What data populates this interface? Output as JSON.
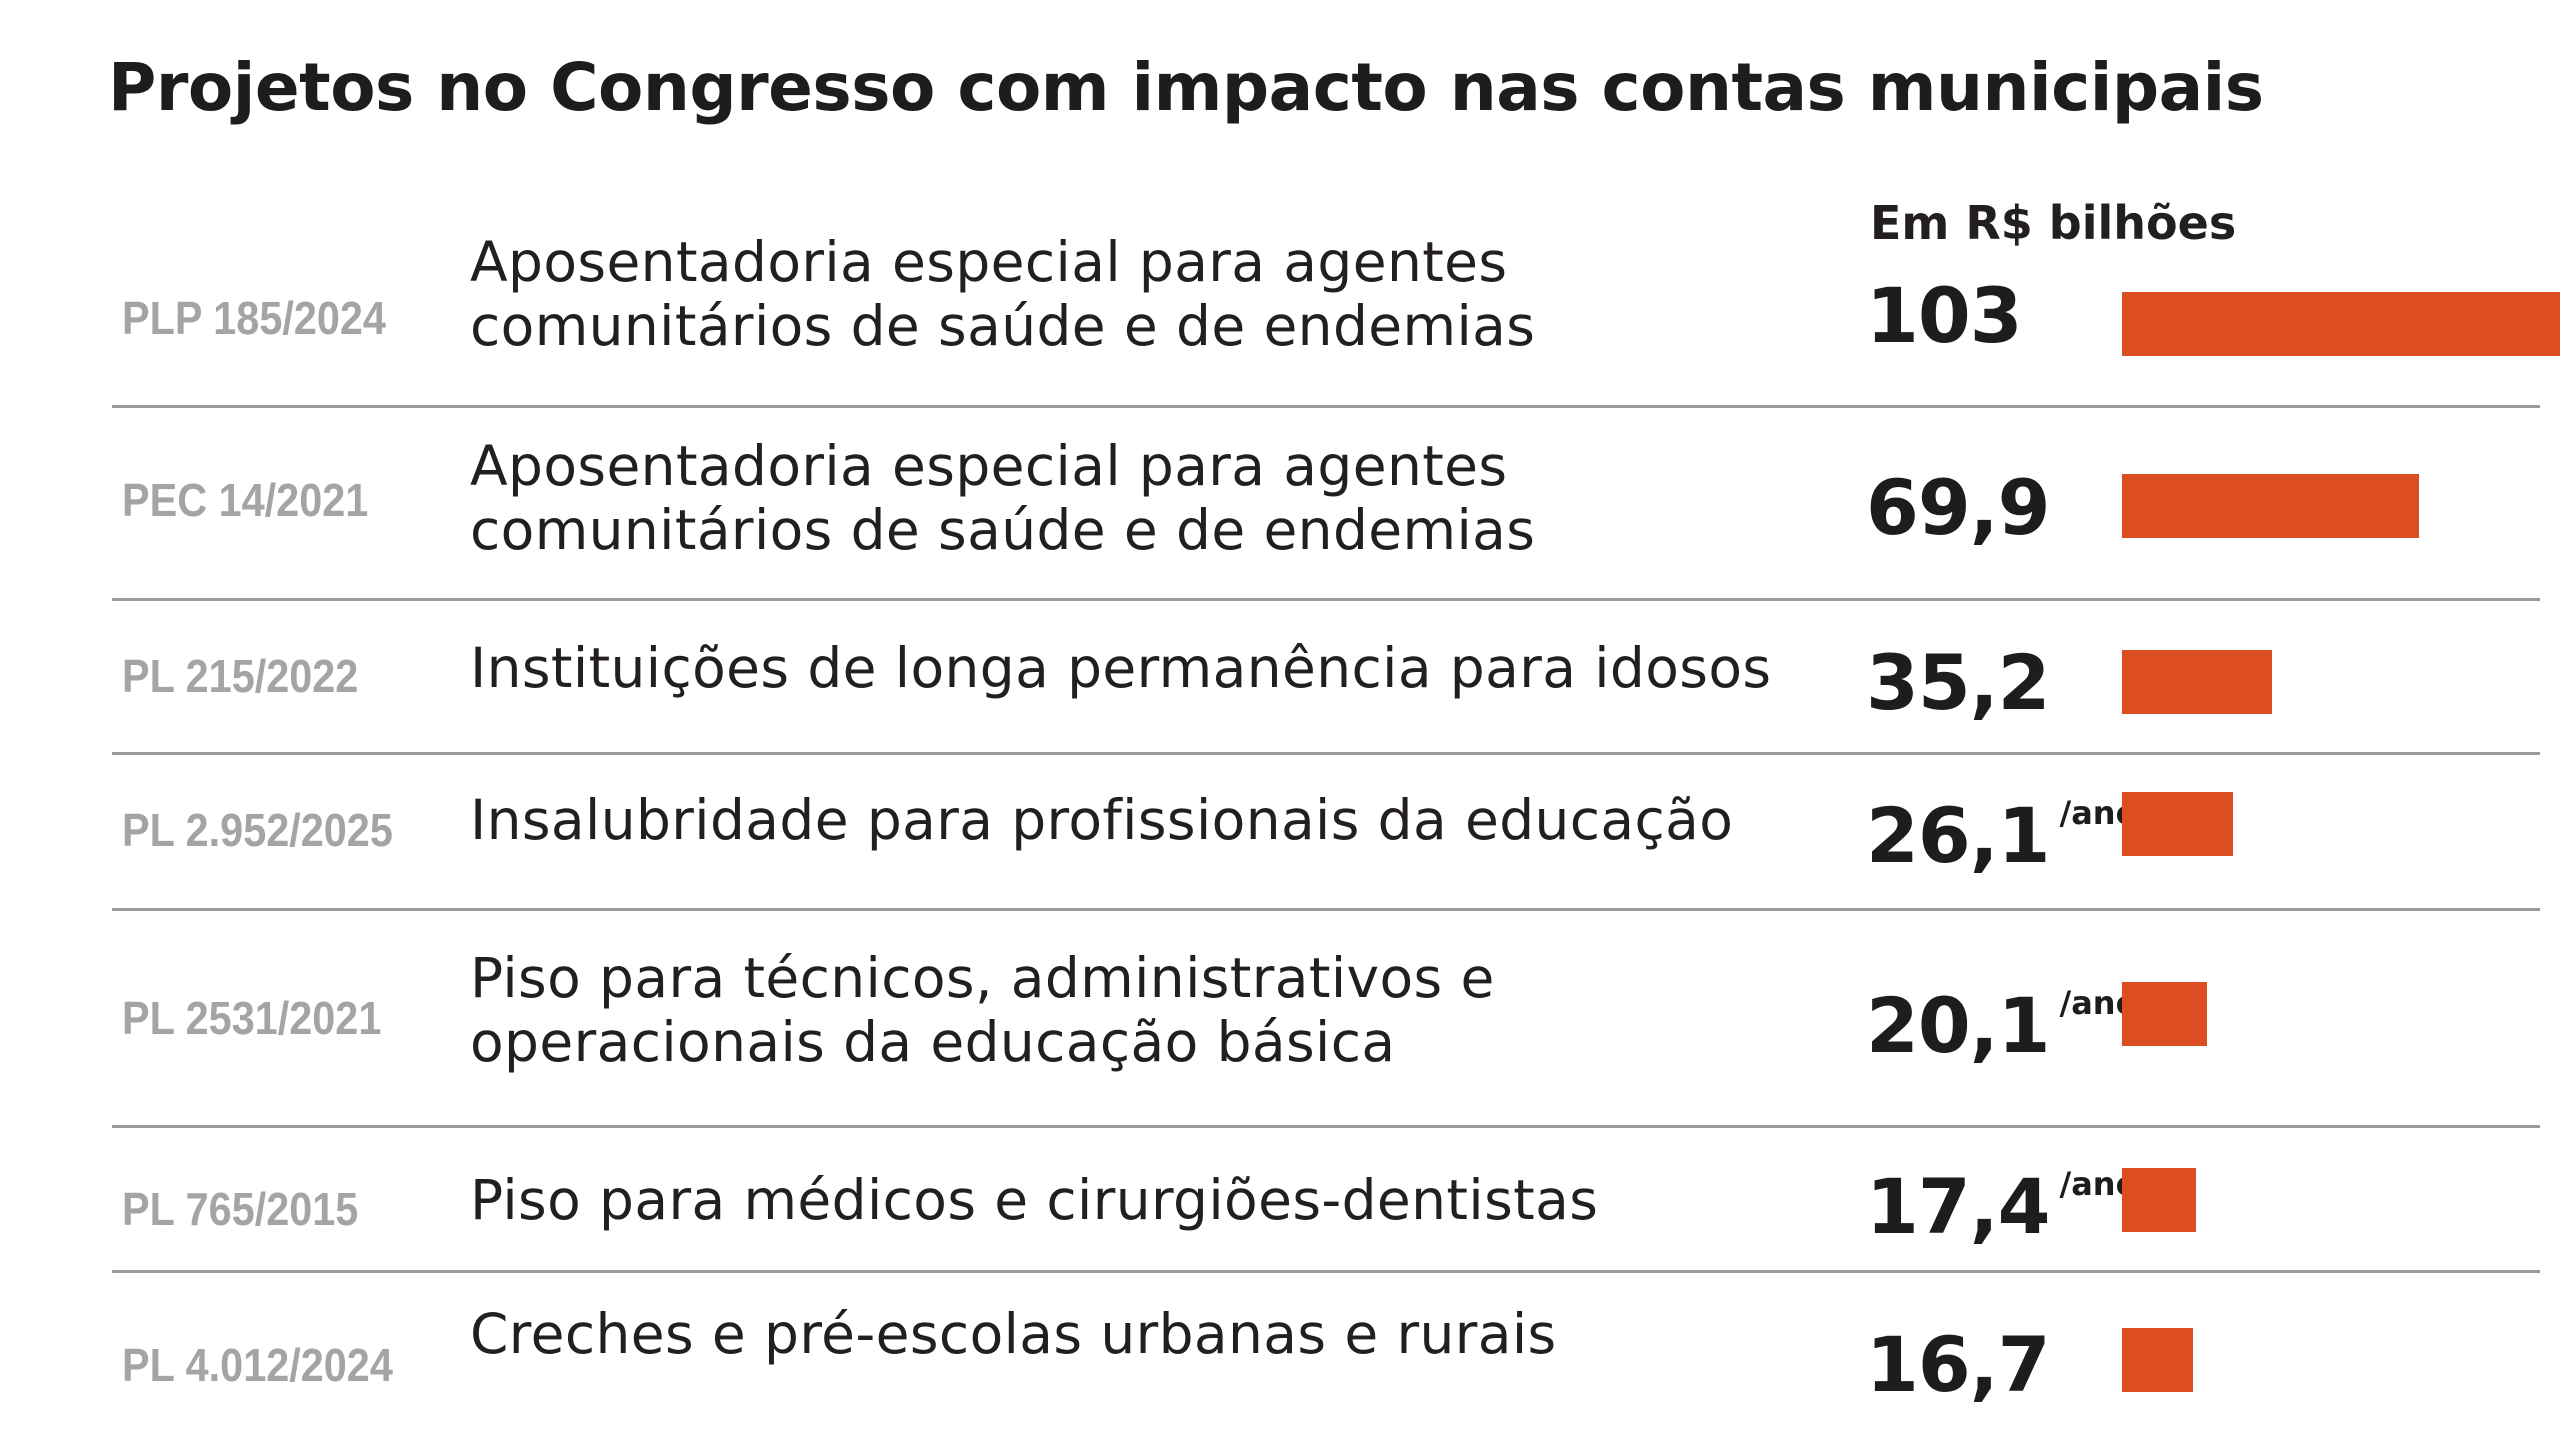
{
  "title": "Projetos no Congresso com impacto nas contas municipais",
  "unit_label": "Em R$ bilhões",
  "rows": [
    {
      "code": "PLP 185/2024",
      "description_lines": [
        "Aposentadoria especial para agentes",
        "comunitários de saúde e de endemias"
      ],
      "value_label": "103",
      "suffix": ""
    },
    {
      "code": "PEC 14/2021",
      "description_lines": [
        "Aposentadoria especial para agentes",
        "comunitários de saúde e de endemias"
      ],
      "value_label": "69,9",
      "suffix": ""
    },
    {
      "code": "PL 215/2022",
      "description_lines": [
        "Instituições de longa permanência para idosos"
      ],
      "value_label": "35,2",
      "suffix": ""
    },
    {
      "code": "PL 2.952/2025",
      "description_lines": [
        "Insalubridade para profissionais da educação"
      ],
      "value_label": "26,1",
      "suffix": "/ano"
    },
    {
      "code": "PL 2531/2021",
      "description_lines": [
        "Piso para técnicos, administrativos e",
        "operacionais da educação básica"
      ],
      "value_label": "20,1",
      "suffix": "/ano"
    },
    {
      "code": "PL 765/2015",
      "description_lines": [
        "Piso para médicos e cirurgiões-dentistas"
      ],
      "value_label": "17,4",
      "suffix": "/ano"
    },
    {
      "code": "PL 4.012/2024",
      "description_lines": [
        "Creches e pré-escolas urbanas e rurais"
      ],
      "value_label": "16,7",
      "suffix": ""
    }
  ],
  "colors": {
    "bar": "#dc4d21",
    "code_text": "#a5a4a4",
    "divider": "#9a9899"
  },
  "chart_data": {
    "type": "bar",
    "orientation": "horizontal",
    "title": "Projetos no Congresso com impacto nas contas municipais",
    "unit": "Em R$ bilhões",
    "categories": [
      "PLP 185/2024",
      "PEC 14/2021",
      "PL 215/2022",
      "PL 2.952/2025",
      "PL 2531/2021",
      "PL 765/2015",
      "PL 4.012/2024"
    ],
    "values": [
      103,
      69.9,
      35.2,
      26.1,
      20.1,
      17.4,
      16.7
    ],
    "xlim": [
      0,
      103
    ],
    "grid": false,
    "legend": "none"
  }
}
